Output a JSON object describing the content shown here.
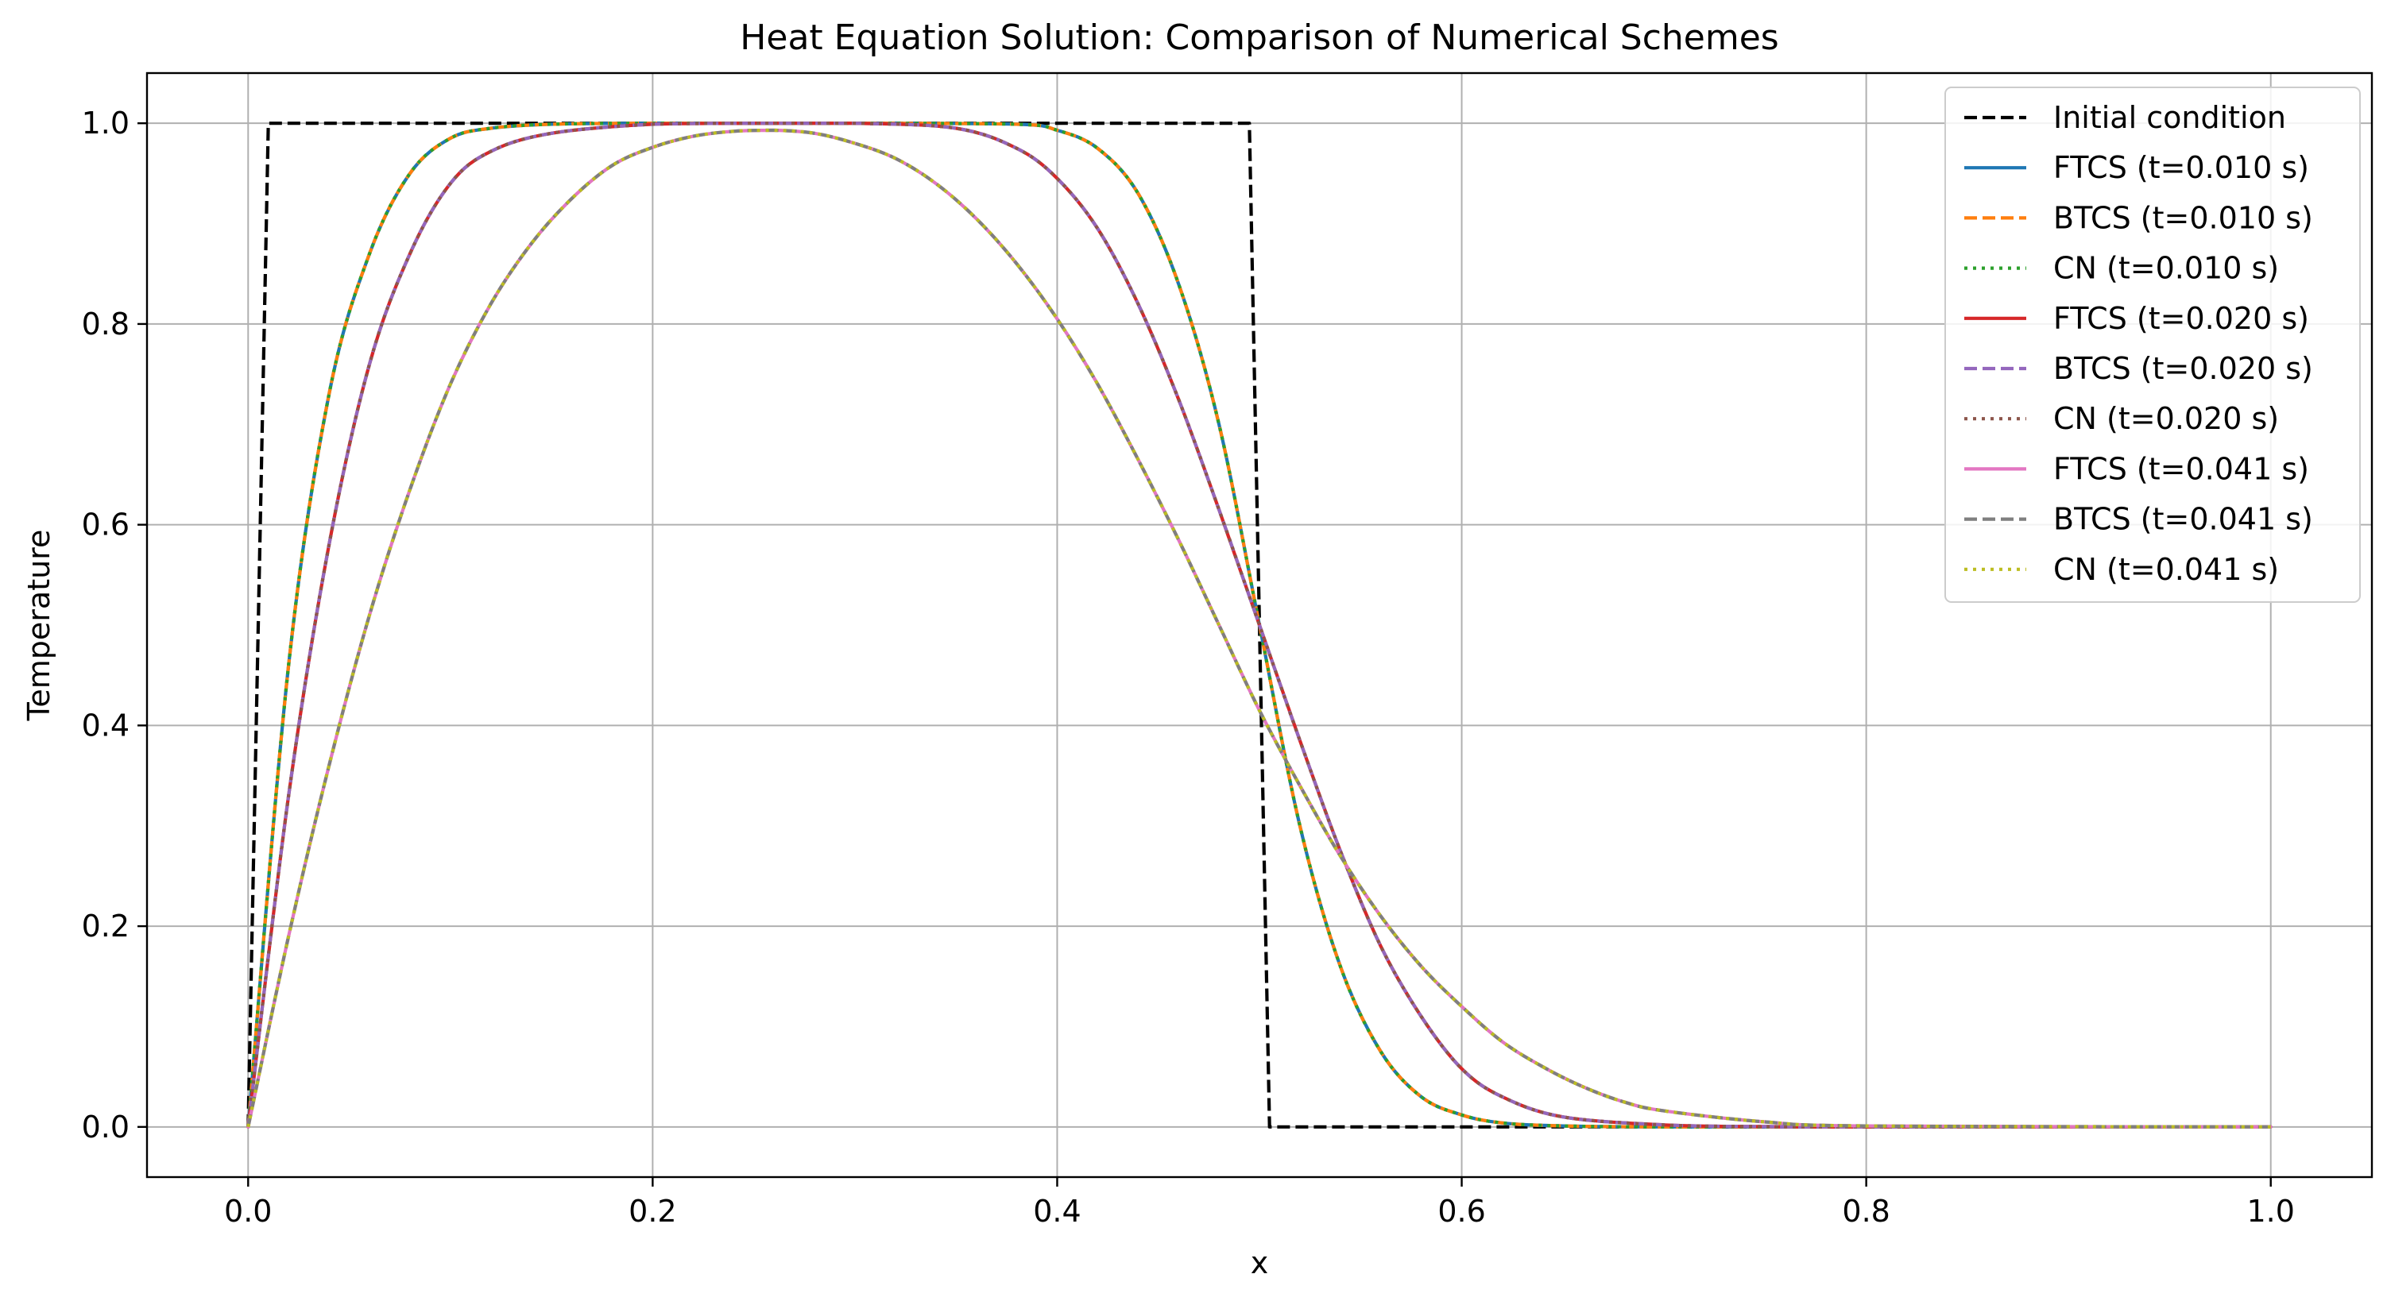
{
  "chart_data": {
    "type": "line",
    "title": "Heat Equation Solution: Comparison of Numerical Schemes",
    "xlabel": "x",
    "ylabel": "Temperature",
    "xlim": [
      -0.05,
      1.05
    ],
    "ylim": [
      -0.05,
      1.05
    ],
    "x_ticks": [
      "0.0",
      "0.2",
      "0.4",
      "0.6",
      "0.8",
      "1.0"
    ],
    "y_ticks": [
      "0.0",
      "0.2",
      "0.4",
      "0.6",
      "0.8",
      "1.0"
    ],
    "grid": true,
    "legend_position": "top-right",
    "series": [
      {
        "name": "Initial condition",
        "color": "#000000",
        "style": "dashed",
        "x": [
          0.0,
          0.01,
          0.495,
          0.505,
          1.0
        ],
        "y": [
          0.0,
          1.0,
          1.0,
          0.0,
          0.0
        ]
      },
      {
        "name": "FTCS (t=0.010 s)",
        "color": "#1f77b4",
        "style": "solid",
        "x": [
          0.0,
          0.02,
          0.04,
          0.06,
          0.08,
          0.1,
          0.12,
          0.15,
          0.2,
          0.3,
          0.38,
          0.4,
          0.42,
          0.44,
          0.46,
          0.48,
          0.5,
          0.52,
          0.54,
          0.56,
          0.58,
          0.6,
          0.62,
          0.65,
          0.7,
          0.8,
          1.0
        ],
        "y": [
          0.0,
          0.46,
          0.73,
          0.87,
          0.95,
          0.985,
          0.995,
          0.999,
          1.0,
          1.0,
          0.999,
          0.993,
          0.975,
          0.93,
          0.84,
          0.7,
          0.5,
          0.3,
          0.16,
          0.075,
          0.03,
          0.012,
          0.004,
          0.001,
          0.0,
          0.0,
          0.0
        ]
      },
      {
        "name": "BTCS (t=0.010 s)",
        "color": "#ff7f0e",
        "style": "dashed",
        "x": [
          0.0,
          0.02,
          0.04,
          0.06,
          0.08,
          0.1,
          0.12,
          0.15,
          0.2,
          0.3,
          0.38,
          0.4,
          0.42,
          0.44,
          0.46,
          0.48,
          0.5,
          0.52,
          0.54,
          0.56,
          0.58,
          0.6,
          0.62,
          0.65,
          0.7,
          0.8,
          1.0
        ],
        "y": [
          0.0,
          0.46,
          0.73,
          0.87,
          0.95,
          0.985,
          0.995,
          0.999,
          1.0,
          1.0,
          0.999,
          0.993,
          0.975,
          0.93,
          0.84,
          0.7,
          0.5,
          0.3,
          0.16,
          0.075,
          0.03,
          0.012,
          0.004,
          0.001,
          0.0,
          0.0,
          0.0
        ]
      },
      {
        "name": "CN (t=0.010 s)",
        "color": "#2ca02c",
        "style": "dotted",
        "x": [
          0.0,
          0.02,
          0.04,
          0.06,
          0.08,
          0.1,
          0.12,
          0.15,
          0.2,
          0.3,
          0.38,
          0.4,
          0.42,
          0.44,
          0.46,
          0.48,
          0.5,
          0.52,
          0.54,
          0.56,
          0.58,
          0.6,
          0.62,
          0.65,
          0.7,
          0.8,
          1.0
        ],
        "y": [
          0.0,
          0.46,
          0.73,
          0.87,
          0.95,
          0.985,
          0.995,
          0.999,
          1.0,
          1.0,
          0.999,
          0.993,
          0.975,
          0.93,
          0.84,
          0.7,
          0.5,
          0.3,
          0.16,
          0.075,
          0.03,
          0.012,
          0.004,
          0.001,
          0.0,
          0.0,
          0.0
        ]
      },
      {
        "name": "FTCS (t=0.020 s)",
        "color": "#d62728",
        "style": "solid",
        "x": [
          0.0,
          0.02,
          0.04,
          0.06,
          0.08,
          0.1,
          0.12,
          0.15,
          0.2,
          0.25,
          0.3,
          0.35,
          0.38,
          0.4,
          0.42,
          0.44,
          0.46,
          0.48,
          0.5,
          0.52,
          0.54,
          0.56,
          0.58,
          0.6,
          0.62,
          0.65,
          0.7,
          0.75,
          0.8,
          1.0
        ],
        "y": [
          0.0,
          0.33,
          0.58,
          0.76,
          0.87,
          0.94,
          0.972,
          0.99,
          0.999,
          1.0,
          1.0,
          0.995,
          0.975,
          0.945,
          0.895,
          0.82,
          0.725,
          0.615,
          0.5,
          0.385,
          0.275,
          0.18,
          0.11,
          0.058,
          0.03,
          0.01,
          0.002,
          0.0003,
          0.0,
          0.0
        ]
      },
      {
        "name": "BTCS (t=0.020 s)",
        "color": "#9467bd",
        "style": "dashed",
        "x": [
          0.0,
          0.02,
          0.04,
          0.06,
          0.08,
          0.1,
          0.12,
          0.15,
          0.2,
          0.25,
          0.3,
          0.35,
          0.38,
          0.4,
          0.42,
          0.44,
          0.46,
          0.48,
          0.5,
          0.52,
          0.54,
          0.56,
          0.58,
          0.6,
          0.62,
          0.65,
          0.7,
          0.75,
          0.8,
          1.0
        ],
        "y": [
          0.0,
          0.33,
          0.58,
          0.76,
          0.87,
          0.94,
          0.972,
          0.99,
          0.999,
          1.0,
          1.0,
          0.995,
          0.975,
          0.945,
          0.895,
          0.82,
          0.725,
          0.615,
          0.5,
          0.385,
          0.275,
          0.18,
          0.11,
          0.058,
          0.03,
          0.01,
          0.002,
          0.0003,
          0.0,
          0.0
        ]
      },
      {
        "name": "CN (t=0.020 s)",
        "color": "#8c564b",
        "style": "dotted",
        "x": [
          0.0,
          0.02,
          0.04,
          0.06,
          0.08,
          0.1,
          0.12,
          0.15,
          0.2,
          0.25,
          0.3,
          0.35,
          0.38,
          0.4,
          0.42,
          0.44,
          0.46,
          0.48,
          0.5,
          0.52,
          0.54,
          0.56,
          0.58,
          0.6,
          0.62,
          0.65,
          0.7,
          0.75,
          0.8,
          1.0
        ],
        "y": [
          0.0,
          0.33,
          0.58,
          0.76,
          0.87,
          0.94,
          0.972,
          0.99,
          0.999,
          1.0,
          1.0,
          0.995,
          0.975,
          0.945,
          0.895,
          0.82,
          0.725,
          0.615,
          0.5,
          0.385,
          0.275,
          0.18,
          0.11,
          0.058,
          0.03,
          0.01,
          0.002,
          0.0003,
          0.0,
          0.0
        ]
      },
      {
        "name": "FTCS (t=0.041 s)",
        "color": "#e377c2",
        "style": "solid",
        "x": [
          0.0,
          0.02,
          0.04,
          0.06,
          0.08,
          0.1,
          0.12,
          0.14,
          0.16,
          0.18,
          0.2,
          0.22,
          0.24,
          0.26,
          0.28,
          0.3,
          0.32,
          0.34,
          0.36,
          0.38,
          0.4,
          0.42,
          0.44,
          0.46,
          0.48,
          0.5,
          0.52,
          0.54,
          0.56,
          0.58,
          0.6,
          0.62,
          0.64,
          0.66,
          0.68,
          0.7,
          0.75,
          0.8,
          1.0
        ],
        "y": [
          0.0,
          0.19,
          0.36,
          0.51,
          0.635,
          0.74,
          0.82,
          0.88,
          0.925,
          0.958,
          0.976,
          0.987,
          0.992,
          0.993,
          0.99,
          0.98,
          0.965,
          0.94,
          0.905,
          0.86,
          0.805,
          0.74,
          0.665,
          0.585,
          0.5,
          0.415,
          0.34,
          0.27,
          0.21,
          0.16,
          0.12,
          0.085,
          0.06,
          0.04,
          0.025,
          0.016,
          0.005,
          0.001,
          0.0
        ]
      },
      {
        "name": "BTCS (t=0.041 s)",
        "color": "#7f7f7f",
        "style": "dashed",
        "x": [
          0.0,
          0.02,
          0.04,
          0.06,
          0.08,
          0.1,
          0.12,
          0.14,
          0.16,
          0.18,
          0.2,
          0.22,
          0.24,
          0.26,
          0.28,
          0.3,
          0.32,
          0.34,
          0.36,
          0.38,
          0.4,
          0.42,
          0.44,
          0.46,
          0.48,
          0.5,
          0.52,
          0.54,
          0.56,
          0.58,
          0.6,
          0.62,
          0.64,
          0.66,
          0.68,
          0.7,
          0.75,
          0.8,
          1.0
        ],
        "y": [
          0.0,
          0.19,
          0.36,
          0.51,
          0.635,
          0.74,
          0.82,
          0.88,
          0.925,
          0.958,
          0.976,
          0.987,
          0.992,
          0.993,
          0.99,
          0.98,
          0.965,
          0.94,
          0.905,
          0.86,
          0.805,
          0.74,
          0.665,
          0.585,
          0.5,
          0.415,
          0.34,
          0.27,
          0.21,
          0.16,
          0.12,
          0.085,
          0.06,
          0.04,
          0.025,
          0.016,
          0.005,
          0.001,
          0.0
        ]
      },
      {
        "name": "CN (t=0.041 s)",
        "color": "#bcbd22",
        "style": "dotted",
        "x": [
          0.0,
          0.02,
          0.04,
          0.06,
          0.08,
          0.1,
          0.12,
          0.14,
          0.16,
          0.18,
          0.2,
          0.22,
          0.24,
          0.26,
          0.28,
          0.3,
          0.32,
          0.34,
          0.36,
          0.38,
          0.4,
          0.42,
          0.44,
          0.46,
          0.48,
          0.5,
          0.52,
          0.54,
          0.56,
          0.58,
          0.6,
          0.62,
          0.64,
          0.66,
          0.68,
          0.7,
          0.75,
          0.8,
          1.0
        ],
        "y": [
          0.0,
          0.19,
          0.36,
          0.51,
          0.635,
          0.74,
          0.82,
          0.88,
          0.925,
          0.958,
          0.976,
          0.987,
          0.992,
          0.993,
          0.99,
          0.98,
          0.965,
          0.94,
          0.905,
          0.86,
          0.805,
          0.74,
          0.665,
          0.585,
          0.5,
          0.415,
          0.34,
          0.27,
          0.21,
          0.16,
          0.12,
          0.085,
          0.06,
          0.04,
          0.025,
          0.016,
          0.005,
          0.001,
          0.0
        ]
      }
    ]
  }
}
